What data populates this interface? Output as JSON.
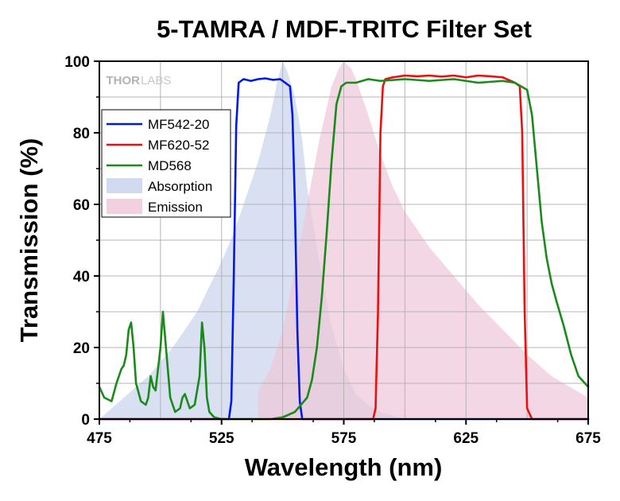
{
  "chart_data": {
    "type": "line",
    "title": "5-TAMRA / MDF-TRITC Filter Set",
    "xlabel": "Wavelength (nm)",
    "ylabel": "Transmission (%)",
    "xlim": [
      475,
      675
    ],
    "ylim": [
      0,
      100
    ],
    "xticks": [
      475,
      525,
      575,
      625,
      675
    ],
    "yticks": [
      0,
      20,
      40,
      60,
      80,
      100
    ],
    "grid": true,
    "legend_position": "top-left",
    "watermark": {
      "thor": "THOR",
      "labs": "LABS"
    },
    "series": [
      {
        "name": "Absorption",
        "kind": "area",
        "color": "#c9d4ec",
        "x": [
          475,
          485,
          495,
          505,
          515,
          520,
          525,
          530,
          535,
          540,
          545,
          548,
          550,
          552,
          555,
          558,
          560,
          565,
          570,
          575,
          580,
          585,
          590,
          595,
          600,
          605
        ],
        "y": [
          0,
          6,
          12,
          20,
          30,
          37,
          44,
          52,
          62,
          72,
          85,
          95,
          100,
          97,
          90,
          78,
          65,
          44,
          26,
          14,
          7,
          4,
          2,
          1,
          0,
          0
        ]
      },
      {
        "name": "Emission",
        "kind": "area",
        "color": "#eec8d9",
        "x": [
          540,
          545,
          550,
          555,
          560,
          565,
          570,
          573,
          575,
          578,
          580,
          585,
          590,
          595,
          600,
          610,
          620,
          630,
          640,
          650,
          660,
          670,
          675
        ],
        "y": [
          8,
          14,
          25,
          42,
          60,
          78,
          93,
          98,
          100,
          98,
          95,
          85,
          74,
          65,
          58,
          48,
          40,
          32,
          25,
          18,
          12,
          8,
          6
        ]
      },
      {
        "name": "MF542-20",
        "kind": "line",
        "color": "#0018e8",
        "x": [
          475,
          525,
          528,
          529,
          530,
          531,
          532,
          534,
          537,
          540,
          543,
          546,
          549,
          551,
          553,
          554,
          555,
          556,
          557,
          558,
          600,
          675
        ],
        "y": [
          0,
          0,
          0,
          5,
          40,
          82,
          94,
          95,
          94.5,
          95,
          95.2,
          94.8,
          95,
          94,
          93,
          85,
          60,
          25,
          5,
          0,
          0,
          0
        ]
      },
      {
        "name": "MF620-52",
        "kind": "line",
        "color": "#e81010",
        "x": [
          475,
          587,
          588,
          589,
          590,
          591,
          592,
          595,
          600,
          605,
          610,
          615,
          620,
          625,
          630,
          635,
          640,
          645,
          647,
          648,
          649,
          650,
          652,
          675
        ],
        "y": [
          0,
          0,
          3,
          30,
          80,
          93,
          95,
          95.5,
          96,
          95.8,
          96,
          95.7,
          96,
          95.5,
          96,
          95.8,
          95.5,
          94,
          93,
          80,
          30,
          3,
          0,
          0
        ]
      },
      {
        "name": "MD568",
        "kind": "line",
        "color": "#1a8a1a",
        "x": [
          475,
          477,
          480,
          482,
          484,
          485,
          486,
          487,
          488,
          489,
          490,
          492,
          494,
          495,
          496,
          497,
          498,
          500,
          501,
          502,
          504,
          506,
          508,
          509,
          510,
          511,
          512,
          514,
          516,
          517,
          518,
          519,
          520,
          522,
          525,
          530,
          540,
          545,
          550,
          555,
          560,
          562,
          564,
          566,
          568,
          570,
          572,
          574,
          576,
          578,
          580,
          585,
          590,
          600,
          610,
          620,
          630,
          640,
          645,
          650,
          652,
          654,
          656,
          658,
          660,
          662,
          665,
          668,
          671,
          675
        ],
        "y": [
          9,
          6,
          5,
          10,
          14,
          15,
          18,
          25,
          27,
          20,
          10,
          5,
          4,
          6,
          12,
          9,
          8,
          20,
          30,
          22,
          6,
          2,
          3,
          6,
          7,
          5,
          3,
          4,
          12,
          27,
          20,
          6,
          2,
          0.5,
          0,
          0,
          0,
          0,
          0.5,
          2,
          6,
          11,
          20,
          34,
          52,
          72,
          88,
          93,
          94,
          94,
          94,
          95,
          94.5,
          95,
          94.5,
          95,
          94,
          94.5,
          94,
          92,
          85,
          70,
          55,
          45,
          38,
          33,
          26,
          18,
          12,
          9
        ]
      }
    ]
  }
}
